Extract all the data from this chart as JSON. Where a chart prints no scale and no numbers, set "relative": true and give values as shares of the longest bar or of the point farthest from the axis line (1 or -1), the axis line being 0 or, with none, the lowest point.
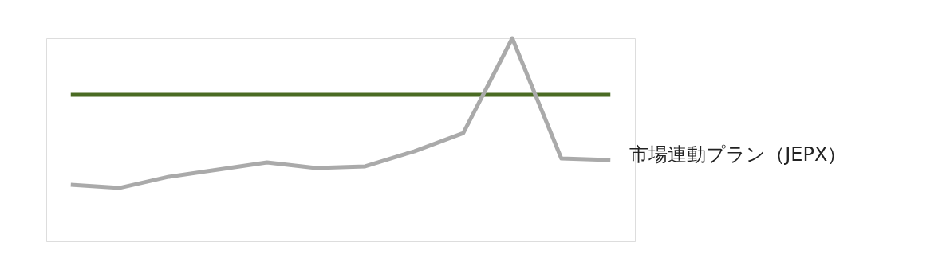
{
  "chart_data": {
    "type": "line",
    "relative": true,
    "grid": false,
    "marker": "none",
    "line_style": "solid",
    "categories": [
      null,
      null,
      null,
      null,
      null,
      null,
      null,
      null,
      null,
      null,
      null,
      null
    ],
    "series": [
      {
        "color": "#4a6b23",
        "values": [
          0.722,
          0.722,
          0.722,
          0.722,
          0.722,
          0.722,
          0.722,
          0.722,
          0.722,
          0.722,
          0.722,
          0.722
        ]
      },
      {
        "name": "市場連動プラン（JEPX）",
        "color": "#aaaaaa",
        "values": [
          0.278,
          0.263,
          0.318,
          0.353,
          0.388,
          0.361,
          0.369,
          0.443,
          0.533,
          1,
          0.408,
          0.4
        ]
      }
    ]
  }
}
